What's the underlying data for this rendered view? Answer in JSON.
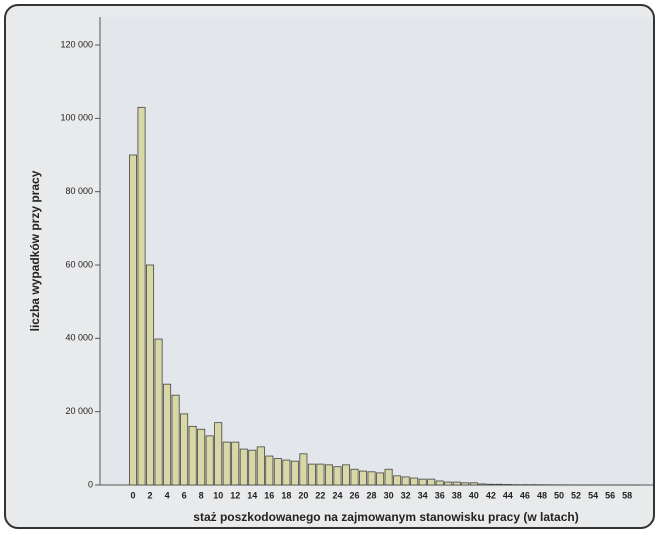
{
  "chart_data": {
    "type": "bar",
    "x_label": "staż poszkodowanego na zajmowanym stanowisku pracy (w latach)",
    "y_label": "liczba wypadków przy pracy",
    "categories": [
      "0",
      null,
      "2",
      null,
      "4",
      null,
      "6",
      null,
      "8",
      null,
      "10",
      null,
      "12",
      null,
      "14",
      null,
      "16",
      null,
      "18",
      null,
      "20",
      null,
      "22",
      null,
      "24",
      null,
      "26",
      null,
      "28",
      null,
      "30",
      null,
      "32",
      null,
      "34",
      null,
      "36",
      null,
      "38",
      null,
      "40",
      null,
      "42",
      null,
      "44",
      null,
      "46",
      null,
      "48",
      null,
      "50",
      null,
      "52",
      null,
      "54",
      null,
      "56",
      null,
      "58",
      null
    ],
    "values": [
      90000,
      103000,
      60000,
      39800,
      27500,
      24500,
      19400,
      16000,
      15200,
      13400,
      17000,
      11700,
      11700,
      9800,
      9500,
      10400,
      7900,
      7200,
      6800,
      6500,
      8500,
      5700,
      5700,
      5500,
      5000,
      5500,
      4300,
      3800,
      3600,
      3300,
      4300,
      2500,
      2200,
      1900,
      1600,
      1600,
      1100,
      800,
      800,
      600,
      600,
      300,
      200,
      200,
      150,
      100,
      100,
      100,
      80,
      60,
      50,
      40,
      30,
      30,
      20,
      20,
      20,
      10,
      10,
      10
    ],
    "color": "#d8d8a6",
    "ylim": [
      0,
      120000
    ],
    "yticks": [
      0,
      {
        "value": 20000,
        "label": "20 000"
      },
      {
        "value": 40000,
        "label": "40 000"
      },
      {
        "value": 60000,
        "label": "60 000"
      },
      {
        "value": 80000,
        "label": "80 000"
      },
      {
        "value": 100000,
        "label": "100 000"
      },
      {
        "value": 120000,
        "label": "120 000"
      }
    ]
  }
}
